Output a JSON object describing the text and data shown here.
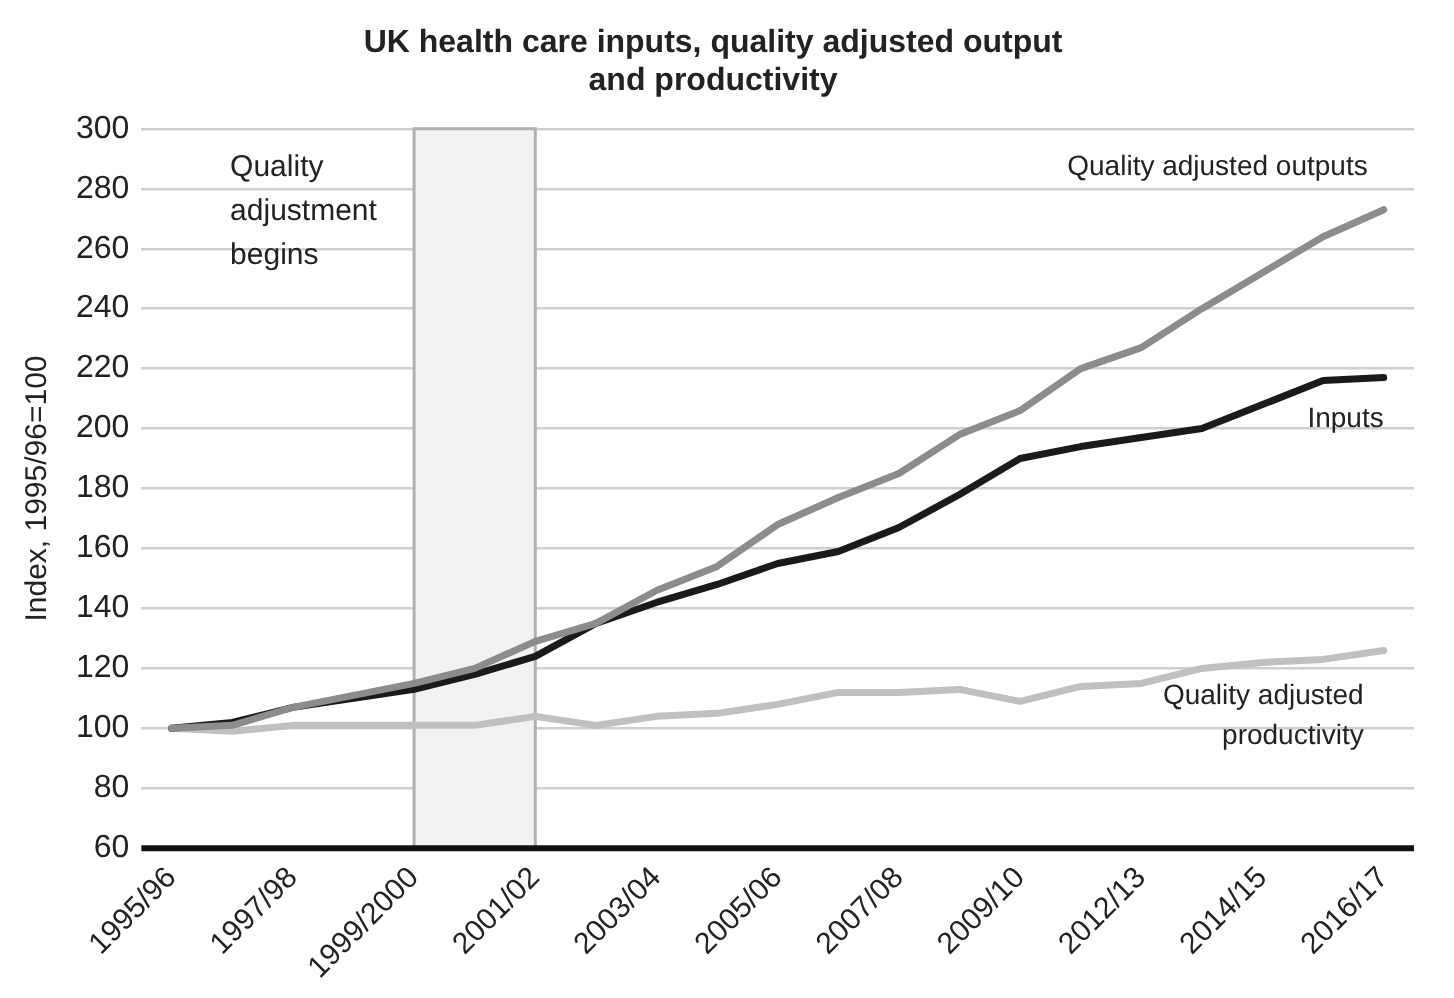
{
  "chart_data": {
    "type": "line",
    "title": "UK health care inputs, quality adjusted output and productivity",
    "ylabel": "Index, 1995/96=100",
    "categories": [
      "1995/96",
      null,
      "1997/98",
      null,
      "1999/2000",
      null,
      "2001/02",
      null,
      "2003/04",
      null,
      "2005/06",
      null,
      "2007/08",
      null,
      "2009/10",
      null,
      "2012/13",
      null,
      "2014/15",
      null,
      "2016/17"
    ],
    "series": [
      {
        "name": "Quality adjusted outputs",
        "color": "#8c8c8c",
        "values": [
          100,
          101,
          107,
          111,
          115,
          120,
          129,
          135,
          146,
          154,
          168,
          177,
          185,
          198,
          206,
          220,
          227,
          240,
          252,
          264,
          273
        ]
      },
      {
        "name": "Inputs",
        "color": "#1a1a1a",
        "values": [
          100,
          102,
          107,
          110,
          113,
          118,
          124,
          135,
          142,
          148,
          155,
          159,
          167,
          178,
          190,
          194,
          197,
          200,
          208,
          216,
          217
        ]
      },
      {
        "name": "Quality adjusted productivity",
        "color": "#c0c0c0",
        "values": [
          100,
          99,
          101,
          101,
          101,
          101,
          104,
          101,
          104,
          105,
          108,
          112,
          112,
          113,
          109,
          114,
          115,
          120,
          122,
          123,
          126
        ]
      }
    ],
    "ylim": [
      60,
      300
    ],
    "yticks": [
      60,
      80,
      100,
      120,
      140,
      160,
      180,
      200,
      220,
      240,
      260,
      280,
      300
    ],
    "grid": "y",
    "legend": false,
    "marker": "none",
    "line_style": "solid",
    "bands": [
      {
        "axis": "x",
        "from": "1999/2000",
        "to": "2001/02",
        "label": "Quality adjustment begins",
        "color": "#f2f2f2"
      }
    ]
  }
}
